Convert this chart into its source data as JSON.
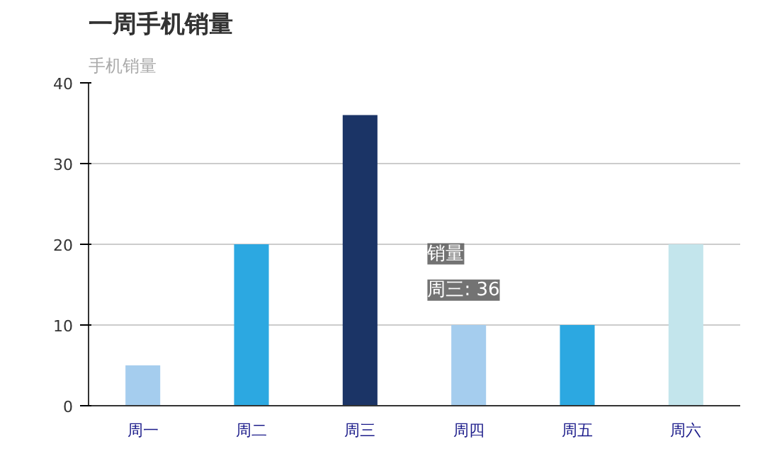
{
  "chart_data": {
    "type": "bar",
    "title": "一周手机销量",
    "subtitle": "手机销量",
    "categories": [
      "周一",
      "周二",
      "周三",
      "周四",
      "周五",
      "周六"
    ],
    "values": [
      5,
      20,
      36,
      10,
      10,
      20
    ],
    "colors": [
      "#a5cdee",
      "#2ca8e1",
      "#1b3466",
      "#a5cdee",
      "#2ca8e1",
      "#c3e5ec"
    ],
    "ylim": [
      0,
      40
    ],
    "yticks": [
      0,
      10,
      20,
      30,
      40
    ],
    "grid": "y",
    "annotations": [
      "销量",
      "周三: 36"
    ]
  }
}
